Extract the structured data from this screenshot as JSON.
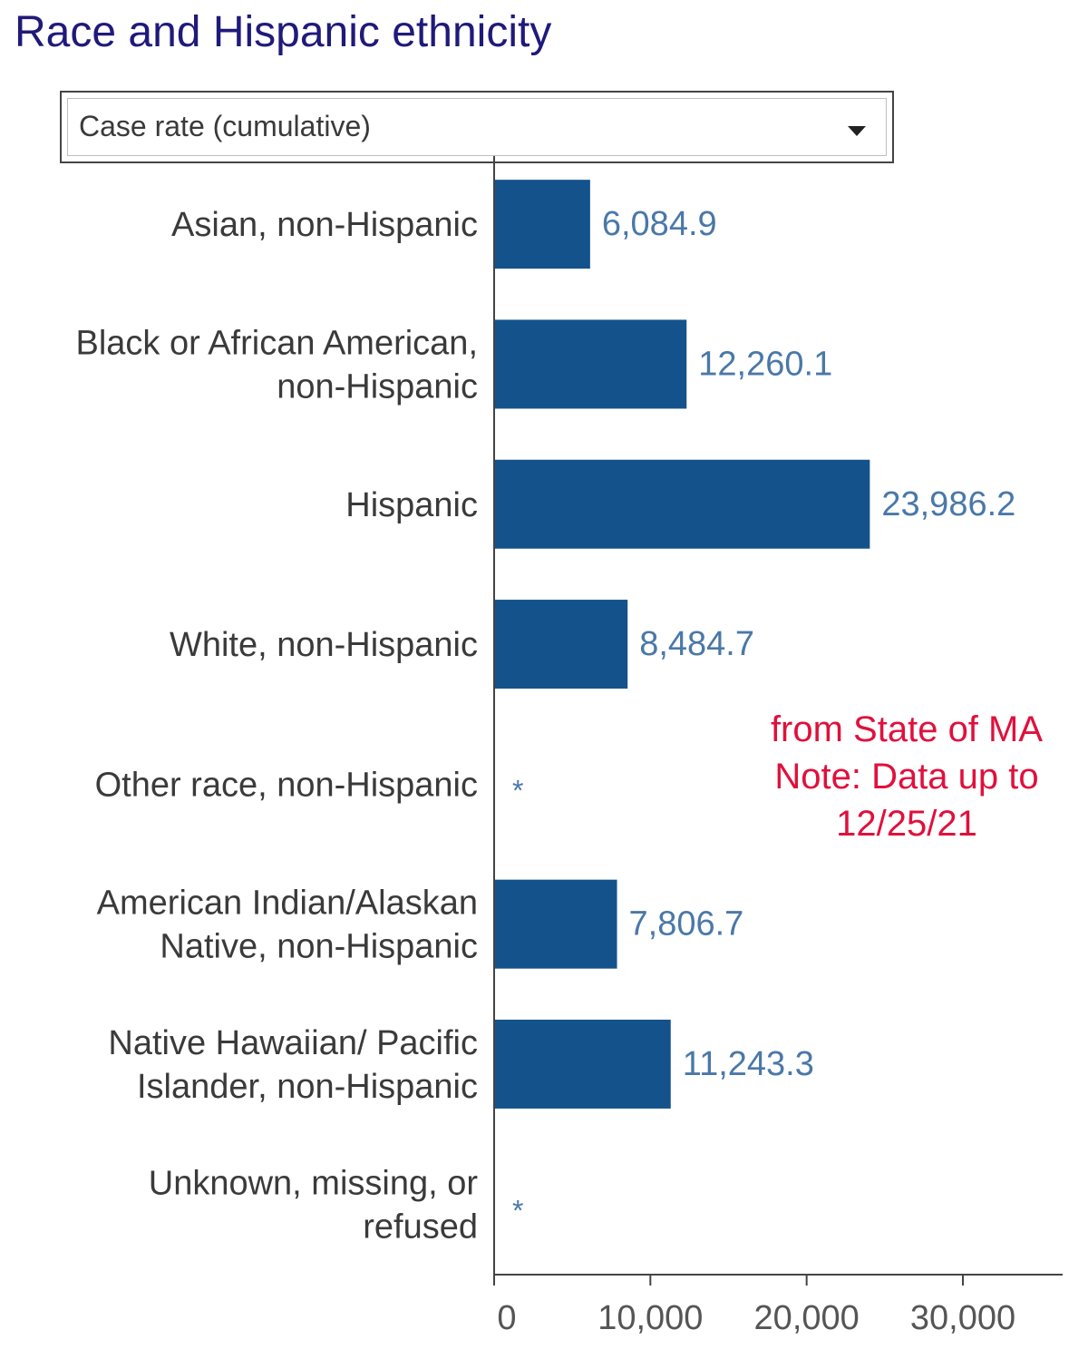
{
  "title": "Race and Hispanic ethnicity",
  "dropdown": {
    "selected": "Case rate (cumulative)"
  },
  "note": {
    "lines": [
      "from State of MA",
      "Note: Data up to",
      "12/25/21"
    ]
  },
  "colors": {
    "bar": "#14528c",
    "value_label": "#4a78a8",
    "title": "#1f1a7a",
    "note": "#e0103c",
    "axis": "#444444",
    "category_label": "#3a3a3a",
    "tick_label": "#555555"
  },
  "chart_data": {
    "type": "bar",
    "orientation": "horizontal",
    "categories": [
      [
        "Asian, non-Hispanic"
      ],
      [
        "Black or African American,",
        "non-Hispanic"
      ],
      [
        "Hispanic"
      ],
      [
        "White, non-Hispanic"
      ],
      [
        "Other race, non-Hispanic"
      ],
      [
        "American Indian/Alaskan",
        "Native, non-Hispanic"
      ],
      [
        "Native Hawaiian/ Pacific",
        "Islander, non-Hispanic"
      ],
      [
        "Unknown, missing, or",
        "refused"
      ]
    ],
    "values": [
      6084.9,
      12260.1,
      23986.2,
      8484.7,
      null,
      7806.7,
      11243.3,
      null
    ],
    "value_labels": [
      "6,084.9",
      "12,260.1",
      "23,986.2",
      "8,484.7",
      "*",
      "7,806.7",
      "11,243.3",
      "*"
    ],
    "xlim": [
      0,
      36000
    ],
    "x_ticks": [
      0,
      10000,
      20000,
      30000
    ],
    "x_tick_labels": [
      "0",
      "10,000",
      "20,000",
      "30,000"
    ],
    "xlabel": "",
    "ylabel": ""
  }
}
